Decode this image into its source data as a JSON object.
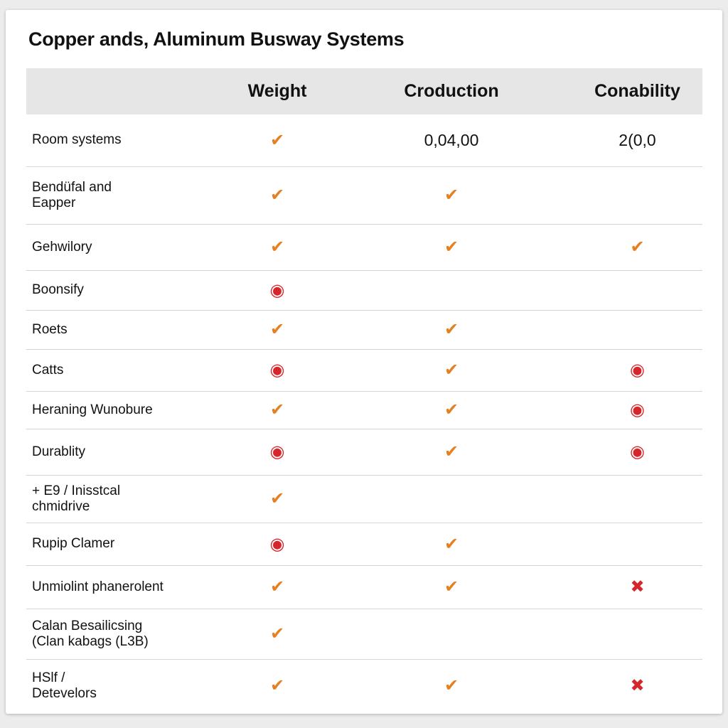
{
  "header": {
    "title": "Copper ands, Aluminum Busway Systems"
  },
  "table": {
    "columns": [
      "Weight",
      "Croduction",
      "Conability"
    ],
    "symbol_colors": {
      "✔": "#e57f1f",
      "◉": "#d6262b",
      "✖": "#d6262b"
    },
    "rows": [
      {
        "label": "Room systems",
        "cells": [
          "✔",
          "0,04,00",
          "2(0,0"
        ]
      },
      {
        "label": "Bendüfal and\nEapper",
        "cells": [
          "✔",
          "✔",
          null
        ]
      },
      {
        "label": "Gehwilory",
        "cells": [
          "✔",
          "✔",
          "✔"
        ]
      },
      {
        "label": "Boonsify",
        "cells": [
          "◉",
          null,
          null
        ]
      },
      {
        "label": "Roets",
        "cells": [
          "✔",
          "✔",
          null
        ]
      },
      {
        "label": "Catts",
        "cells": [
          "◉",
          "✔",
          "◉"
        ]
      },
      {
        "label": "Heraning Wunobure",
        "cells": [
          "✔",
          "✔",
          "◉"
        ]
      },
      {
        "label": "Durablity",
        "cells": [
          "◉",
          "✔",
          "◉"
        ]
      },
      {
        "label": "+ E9 / Inisstcal\nchmidrive",
        "cells": [
          "✔",
          null,
          null
        ]
      },
      {
        "label": "Rupip Clamer",
        "cells": [
          "◉",
          "✔",
          null
        ]
      },
      {
        "label": "Unmiolint phanerolent",
        "cells": [
          "✔",
          "✔",
          "✖"
        ]
      },
      {
        "label": "Calan Besailicsing\n(Clan kabags (L3B)",
        "cells": [
          "✔",
          null,
          null
        ]
      },
      {
        "label": "HSlf /\nDetevelors",
        "cells": [
          "✔",
          "✔",
          "✖"
        ]
      }
    ]
  }
}
